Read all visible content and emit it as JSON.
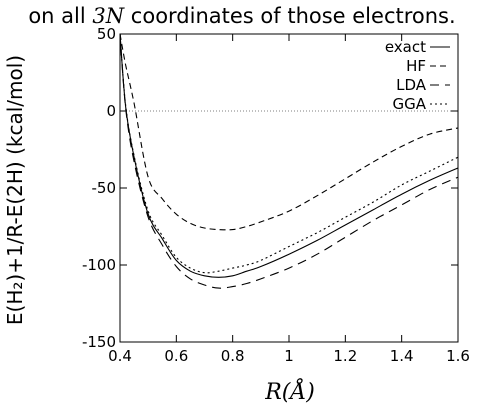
{
  "caption": {
    "prefix": "on all ",
    "math": "3N",
    "suffix": " coordinates of those electrons."
  },
  "chart_data": {
    "type": "line",
    "title": "",
    "xlabel": "R(Å)",
    "ylabel": "E(H₂)+1/R-E(2H) (kcal/mol)",
    "xlim": [
      0.4,
      1.6
    ],
    "ylim": [
      -150,
      50
    ],
    "xticks": [
      0.4,
      0.6,
      0.8,
      1,
      1.2,
      1.4,
      1.6
    ],
    "xtick_labels": [
      "0.4",
      "0.6",
      "0.8",
      "1",
      "1.2",
      "1.4",
      "1.6"
    ],
    "yticks": [
      -150,
      -100,
      -50,
      0,
      50
    ],
    "ytick_labels": [
      "-150",
      "-100",
      "-50",
      "0",
      "50"
    ],
    "zero_line": true,
    "grid": false,
    "legend_position": "top-right",
    "series": [
      {
        "name": "exact",
        "dash": "solid",
        "x": [
          0.4,
          0.42,
          0.45,
          0.5,
          0.55,
          0.6,
          0.65,
          0.7,
          0.75,
          0.8,
          0.85,
          0.9,
          1.0,
          1.1,
          1.2,
          1.3,
          1.4,
          1.5,
          1.6
        ],
        "y": [
          50,
          3,
          -30,
          -67,
          -83,
          -97,
          -104,
          -107,
          -108,
          -107,
          -104,
          -101,
          -93,
          -84,
          -74,
          -64,
          -54,
          -45,
          -37
        ]
      },
      {
        "name": "HF",
        "dash": "dashed",
        "x": [
          0.4,
          0.42,
          0.45,
          0.5,
          0.55,
          0.6,
          0.65,
          0.7,
          0.75,
          0.8,
          0.85,
          0.9,
          1.0,
          1.1,
          1.2,
          1.3,
          1.4,
          1.5,
          1.6
        ],
        "y": [
          50,
          30,
          5,
          -43,
          -57,
          -67,
          -73,
          -76,
          -77,
          -77,
          -75,
          -72,
          -65,
          -55,
          -44,
          -33,
          -23,
          -15,
          -11
        ]
      },
      {
        "name": "LDA",
        "dash": "long-dashed",
        "x": [
          0.4,
          0.42,
          0.45,
          0.5,
          0.55,
          0.6,
          0.65,
          0.7,
          0.75,
          0.8,
          0.85,
          0.9,
          1.0,
          1.1,
          1.2,
          1.3,
          1.4,
          1.5,
          1.6
        ],
        "y": [
          50,
          2,
          -33,
          -69,
          -87,
          -101,
          -109,
          -113,
          -115,
          -114,
          -112,
          -109,
          -102,
          -93,
          -82,
          -71,
          -61,
          -51,
          -43
        ]
      },
      {
        "name": "GGA",
        "dash": "dotted",
        "x": [
          0.4,
          0.42,
          0.45,
          0.5,
          0.55,
          0.6,
          0.65,
          0.7,
          0.75,
          0.8,
          0.85,
          0.9,
          1.0,
          1.1,
          1.2,
          1.3,
          1.4,
          1.5,
          1.6
        ],
        "y": [
          50,
          4,
          -29,
          -65,
          -81,
          -95,
          -102,
          -105,
          -104,
          -102,
          -100,
          -97,
          -88,
          -79,
          -69,
          -59,
          -48,
          -39,
          -30
        ]
      }
    ]
  }
}
